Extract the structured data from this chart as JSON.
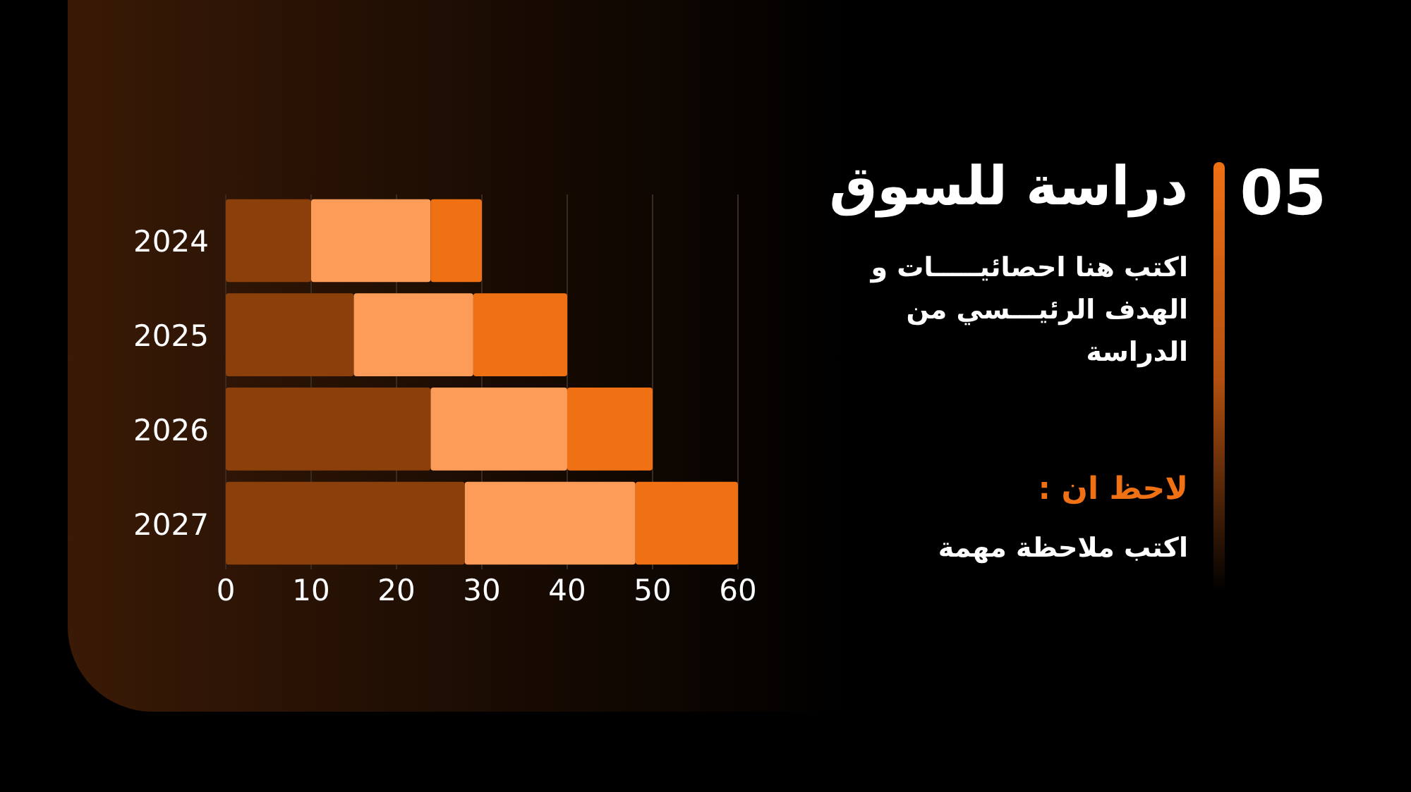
{
  "chart_data": {
    "type": "bar",
    "orientation": "horizontal",
    "stacked": true,
    "title": "دراسة للسوق",
    "subtitle": "اكتب هنا احصائيـــــات و  الهدف الرئيـــسي من الدراسة",
    "annotations": [
      "05",
      "لاحظ ان :",
      "اكتب ملاحظة مهمة"
    ],
    "categories": [
      "2024",
      "2025",
      "2026",
      "2027"
    ],
    "series": [
      {
        "color": "#8b400b",
        "values": [
          10,
          15,
          24,
          28
        ]
      },
      {
        "color": "#fd9c58",
        "values": [
          14,
          14,
          16,
          20
        ]
      },
      {
        "color": "#f07014",
        "values": [
          6,
          11,
          10,
          12
        ]
      }
    ],
    "xlim": [
      0,
      60
    ],
    "xticks": [
      0,
      10,
      20,
      30,
      40,
      50,
      60
    ],
    "grid": "x"
  }
}
